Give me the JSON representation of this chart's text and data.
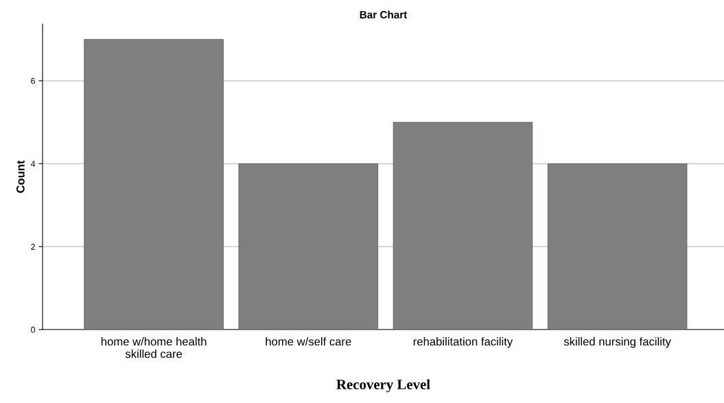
{
  "chart_data": {
    "type": "bar",
    "title": "Bar Chart",
    "xlabel": "Recovery Level",
    "ylabel": "Count",
    "categories": [
      "home w/home health\nskilled care",
      "home w/self care",
      "rehabilitation facility",
      "skilled nursing facility"
    ],
    "values": [
      7,
      4,
      5,
      4
    ],
    "color": "#7f7f7f",
    "ylim": [
      0,
      7.37
    ],
    "yticks": [
      0,
      2,
      4,
      6
    ],
    "grid": "y",
    "legend": false
  }
}
